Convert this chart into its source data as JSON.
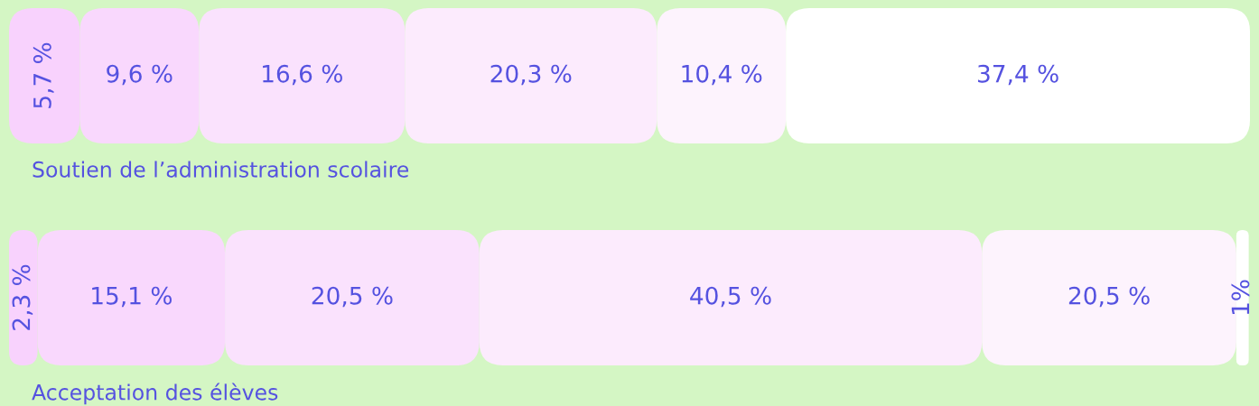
{
  "chart_data": {
    "type": "bar",
    "orientation": "horizontal",
    "stacked": true,
    "categories": [
      "Soutien de l’administration scolaire",
      "Acceptation des élèves"
    ],
    "series": [
      {
        "color": "#f8d2fd",
        "values": [
          5.7,
          2.3
        ],
        "value_labels": [
          "5,7 %",
          "2,3 %"
        ]
      },
      {
        "color": "#f9d8fd",
        "values": [
          9.6,
          15.1
        ],
        "value_labels": [
          "9,6 %",
          "15,1 %"
        ]
      },
      {
        "color": "#fae2fd",
        "values": [
          16.6,
          20.5
        ],
        "value_labels": [
          "16,6 %",
          "20,5 %"
        ]
      },
      {
        "color": "#fcebfd",
        "values": [
          20.3,
          40.5
        ],
        "value_labels": [
          "20,3 %",
          "40,5 %"
        ]
      },
      {
        "color": "#fdf3fd",
        "values": [
          10.4,
          20.5
        ],
        "value_labels": [
          "10,4 %",
          "20,5 %"
        ]
      },
      {
        "color": "#ffffff",
        "values": [
          37.4,
          1
        ],
        "value_labels": [
          "37,4 %",
          "1%"
        ]
      }
    ]
  }
}
